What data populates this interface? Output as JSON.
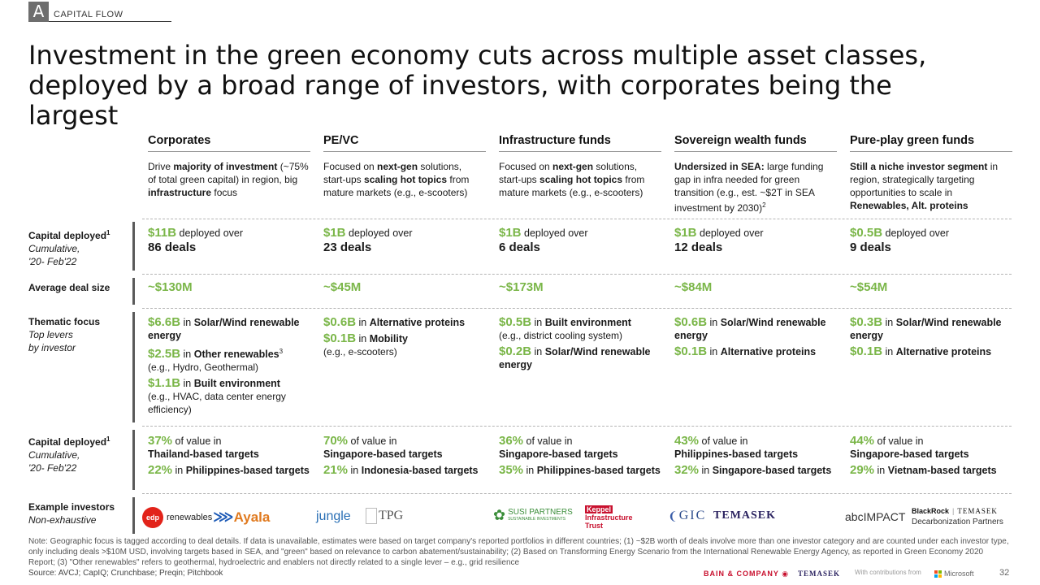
{
  "section": {
    "letter": "A",
    "name": "CAPITAL FLOW"
  },
  "title": "Investment in the green economy cuts across multiple asset classes, deployed by a broad range of investors, with corporates being the largest",
  "rows": {
    "capital1": {
      "label": "Capital deployed",
      "sup": "1",
      "sub1": "Cumulative,",
      "sub2": "'20- Feb'22"
    },
    "avg": {
      "label": "Average deal size"
    },
    "thematic": {
      "label": "Thematic focus",
      "sub1": "Top levers",
      "sub2": "by investor"
    },
    "capital2": {
      "label": "Capital deployed",
      "sup": "1",
      "sub1": "Cumulative,",
      "sub2": "'20- Feb'22"
    },
    "examples": {
      "label": "Example investors",
      "sub1": "Non-exhaustive"
    }
  },
  "common": {
    "deployed_over": " deployed over",
    "of_value_in": " of value in",
    "in": " in "
  },
  "columns": [
    {
      "name": "Corporates",
      "capital": "$11B",
      "deals": "86 deals",
      "avg": "~$130M",
      "thematic": [
        {
          "val": "$6.6B",
          "label": "Solar/Wind renewable energy",
          "sup": "",
          "note": ""
        },
        {
          "val": "$2.5B",
          "label": "Other renewables",
          "sup": "3",
          "note": "(e.g., Hydro, Geothermal)"
        },
        {
          "val": "$1.1B",
          "label": "Built environment",
          "sup": "",
          "note": "(e.g., HVAC, data center energy efficiency)"
        }
      ],
      "geo": [
        {
          "val": "37%",
          "label": "Thailand-based targets"
        },
        {
          "val": "22%",
          "label": "Philippines-based targets"
        }
      ],
      "logos": [
        "edp",
        "renewables",
        "Ayala"
      ]
    },
    {
      "name": "PE/VC",
      "capital": "$1B",
      "deals": "23 deals",
      "avg": "~$45M",
      "thematic": [
        {
          "val": "$0.6B",
          "label": "Alternative proteins",
          "sup": "",
          "note": ""
        },
        {
          "val": "$0.1B",
          "label": "Mobility",
          "sup": "",
          "note": "(e.g., e-scooters)"
        }
      ],
      "geo": [
        {
          "val": "70%",
          "label": "Singapore-based targets"
        },
        {
          "val": "21%",
          "label": "Indonesia-based targets"
        }
      ],
      "logos": [
        "jungle",
        "TPG"
      ]
    },
    {
      "name": "Infrastructure funds",
      "capital": "$1B",
      "deals": "6 deals",
      "avg": "~$173M",
      "thematic": [
        {
          "val": "$0.5B",
          "label": "Built environment",
          "sup": "",
          "note": "(e.g., district cooling system)"
        },
        {
          "val": "$0.2B",
          "label": "Solar/Wind renewable energy",
          "sup": "",
          "note": ""
        }
      ],
      "geo": [
        {
          "val": "36%",
          "label": "Singapore-based targets"
        },
        {
          "val": "35%",
          "label": "Philippines-based targets"
        }
      ],
      "logos": [
        "SUSI PARTNERS",
        "SUSTAINABLE INVESTMENTS",
        "Keppel",
        "Infrastructure",
        "Trust"
      ]
    },
    {
      "name": "Sovereign wealth funds",
      "capital": "$1B",
      "deals": "12 deals",
      "avg": "~$84M",
      "thematic": [
        {
          "val": "$0.6B",
          "label": "Solar/Wind renewable energy",
          "sup": "",
          "note": ""
        },
        {
          "val": "$0.1B",
          "label": "Alternative proteins",
          "sup": "",
          "note": ""
        }
      ],
      "geo": [
        {
          "val": "43%",
          "label": "Philippines-based targets"
        },
        {
          "val": "32%",
          "label": "Singapore-based targets"
        }
      ],
      "logos": [
        "GIC",
        "TEMASEK"
      ]
    },
    {
      "name": "Pure-play green funds",
      "capital": "$0.5B",
      "deals": "9 deals",
      "avg": "~$54M",
      "thematic": [
        {
          "val": "$0.3B",
          "label": "Solar/Wind renewable energy",
          "sup": "",
          "note": ""
        },
        {
          "val": "$0.1B",
          "label": "Alternative proteins",
          "sup": "",
          "note": ""
        }
      ],
      "geo": [
        {
          "val": "44%",
          "label": "Singapore-based targets"
        },
        {
          "val": "29%",
          "label": "Vietnam-based targets"
        }
      ],
      "logos": [
        "abcIMPACT",
        "BlackRock",
        "|",
        "TEMASEK",
        "Decarbonization Partners"
      ]
    }
  ],
  "descriptions": {
    "c0": {
      "t1": "Drive ",
      "b1": "majority of investment",
      "t2": " (~75% of total green capital) in region, big ",
      "b2": "infrastructure",
      "t3": " focus"
    },
    "c1": {
      "t1": "Focused on ",
      "b1": "next-gen",
      "t2": " solutions, start-ups ",
      "b2": "scaling hot topics",
      "t3": " from mature markets (e.g., e-scooters)"
    },
    "c2": {
      "t1": "Focused on ",
      "b1": "next-gen",
      "t2": " solutions, start-ups ",
      "b2": "scaling hot topics",
      "t3": " from mature markets (e.g., e-scooters)"
    },
    "c3": {
      "b1": "Undersized in SEA:",
      "t1": " large funding gap in infra needed for green transition (e.g., est. ~$2T in SEA investment by 2030)",
      "sup": "2"
    },
    "c4": {
      "b1": "Still a niche investor segment",
      "t1": " in region, strategically targeting opportunities to scale in ",
      "b2": "Renewables, Alt. proteins"
    }
  },
  "note": "Note: Geographic focus is tagged according to deal details. If data is unavailable, estimates were based on target company's reported portfolios in different countries; (1) ~$2B worth of deals involve more than one investor category and are counted under each investor type, only including deals >$10M USD, involving targets based in SEA, and \"green\" based on relevance to carbon abatement/sustainability; (2) Based on Transforming Energy Scenario from the International Renewable Energy Agency, as reported in Green Economy 2020 Report; (3) \"Other renewables\" refers to geothermal, hydroelectric and enablers not directly related to a single lever – e.g., grid resilience",
  "source": "Source: AVCJ; CapIQ; Crunchbase; Preqin; Pitchbook",
  "footer": {
    "bain": "BAIN & COMPANY",
    "temasek": "TEMASEK",
    "contrib": "With contributions from",
    "microsoft": "Microsoft",
    "page": "32"
  },
  "colors": {
    "accent": "#7ab648",
    "bar": "#5a5a5a"
  }
}
